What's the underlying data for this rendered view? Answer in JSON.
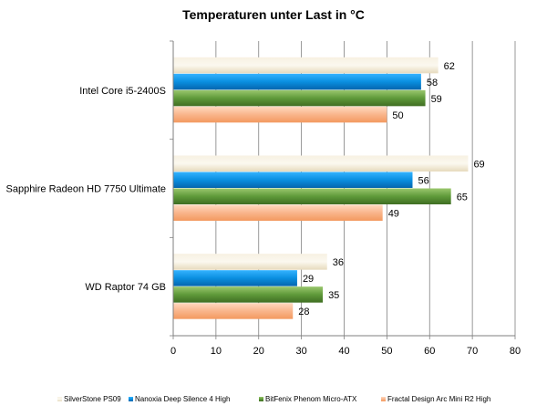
{
  "chart_data": {
    "type": "bar",
    "orientation": "horizontal",
    "title": "Temperaturen  unter Last in °C",
    "categories": [
      "Intel Core i5-2400S",
      "Sapphire Radeon HD 7750 Ultimate",
      "WD Raptor 74 GB"
    ],
    "series": [
      {
        "name": "SilverStone PS09",
        "values": [
          62,
          69,
          36
        ],
        "color": "#efe6cf"
      },
      {
        "name": "Nanoxia Deep Silence 4 High",
        "values": [
          58,
          56,
          29
        ],
        "color": "#0a8fe0"
      },
      {
        "name": "BitFenix Phenom  Micro-ATX",
        "values": [
          59,
          65,
          35
        ],
        "color": "#5f9a3a"
      },
      {
        "name": "Fractal Design Arc Mini R2 High",
        "values": [
          50,
          49,
          28
        ],
        "color": "#f9b58c"
      }
    ],
    "xlim": [
      0,
      80
    ],
    "xticks": [
      "0",
      "10",
      "20",
      "30",
      "40",
      "50",
      "60",
      "70",
      "80"
    ],
    "xlabel": "",
    "ylabel": "",
    "grid": true,
    "legend_position": "bottom"
  }
}
